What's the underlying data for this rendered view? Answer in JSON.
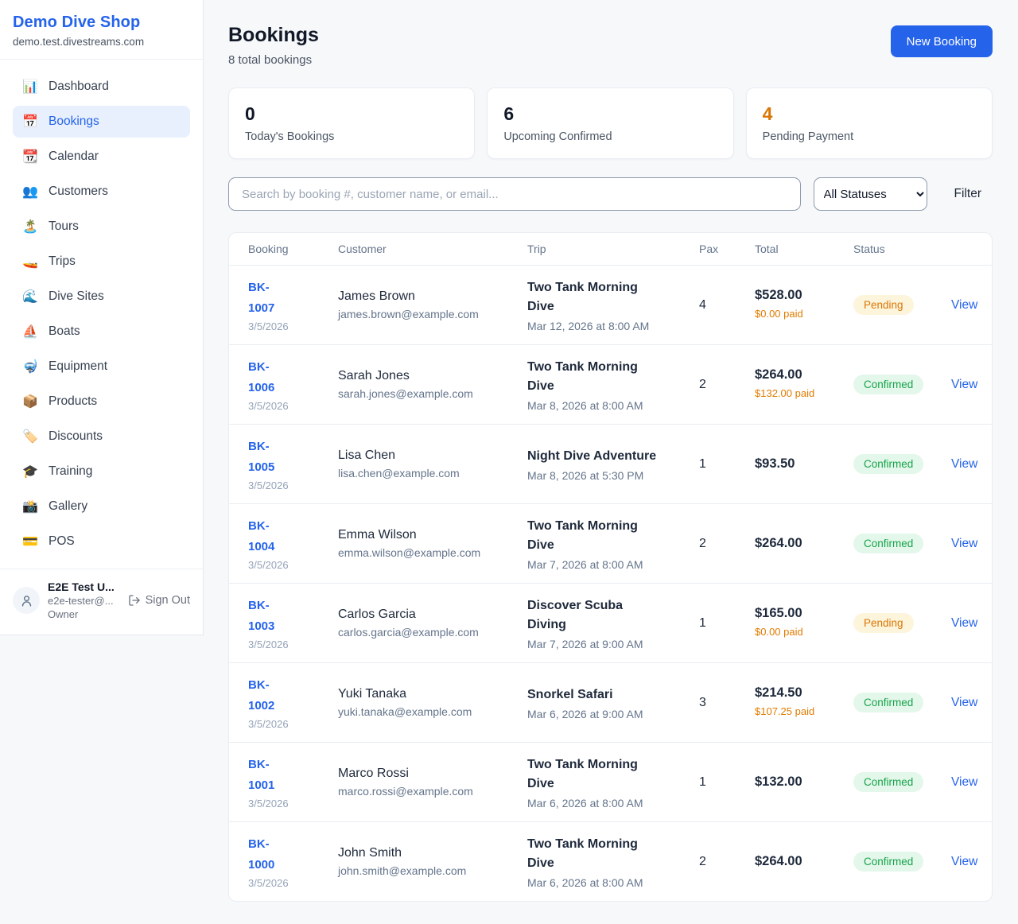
{
  "sidebar": {
    "shop_name": "Demo Dive Shop",
    "domain": "demo.test.divestreams.com",
    "items": [
      {
        "label": "Dashboard",
        "icon": "bar-chart-icon",
        "glyph": "📊",
        "active": false
      },
      {
        "label": "Bookings",
        "icon": "calendar-date-icon",
        "glyph": "📅",
        "active": true
      },
      {
        "label": "Calendar",
        "icon": "tear-off-calendar-icon",
        "glyph": "📆",
        "active": false
      },
      {
        "label": "Customers",
        "icon": "people-icon",
        "glyph": "👥",
        "active": false
      },
      {
        "label": "Tours",
        "icon": "island-icon",
        "glyph": "🏝️",
        "active": false
      },
      {
        "label": "Trips",
        "icon": "speedboat-icon",
        "glyph": "🚤",
        "active": false
      },
      {
        "label": "Dive Sites",
        "icon": "wave-icon",
        "glyph": "🌊",
        "active": false
      },
      {
        "label": "Boats",
        "icon": "sailboat-icon",
        "glyph": "⛵",
        "active": false
      },
      {
        "label": "Equipment",
        "icon": "diving-mask-icon",
        "glyph": "🤿",
        "active": false
      },
      {
        "label": "Products",
        "icon": "package-icon",
        "glyph": "📦",
        "active": false
      },
      {
        "label": "Discounts",
        "icon": "label-tag-icon",
        "glyph": "🏷️",
        "active": false
      },
      {
        "label": "Training",
        "icon": "graduation-cap-icon",
        "glyph": "🎓",
        "active": false
      },
      {
        "label": "Gallery",
        "icon": "camera-flash-icon",
        "glyph": "📸",
        "active": false
      },
      {
        "label": "POS",
        "icon": "credit-card-icon",
        "glyph": "💳",
        "active": false
      }
    ],
    "user": {
      "name": "E2E Test U...",
      "email": "e2e-tester@...",
      "role": "Owner",
      "sign_out_label": "Sign Out"
    }
  },
  "header": {
    "title": "Bookings",
    "subtitle": "8 total bookings",
    "new_booking_label": "New Booking"
  },
  "stats": [
    {
      "value": "0",
      "label": "Today's Bookings"
    },
    {
      "value": "6",
      "label": "Upcoming Confirmed"
    },
    {
      "value": "4",
      "label": "Pending Payment"
    }
  ],
  "filters": {
    "search_placeholder": "Search by booking #, customer name, or email...",
    "status_selected": "All Statuses",
    "filter_label": "Filter"
  },
  "table": {
    "columns": [
      "Booking",
      "Customer",
      "Trip",
      "Pax",
      "Total",
      "Status"
    ],
    "view_label": "View",
    "rows": [
      {
        "id": "BK-1007",
        "date": "3/5/2026",
        "customer": "James Brown",
        "email": "james.brown@example.com",
        "trip": "Two Tank Morning Dive",
        "trip_time": "Mar 12, 2026 at 8:00 AM",
        "pax": "4",
        "total": "$528.00",
        "paid": "$0.00 paid",
        "status": "Pending"
      },
      {
        "id": "BK-1006",
        "date": "3/5/2026",
        "customer": "Sarah Jones",
        "email": "sarah.jones@example.com",
        "trip": "Two Tank Morning Dive",
        "trip_time": "Mar 8, 2026 at 8:00 AM",
        "pax": "2",
        "total": "$264.00",
        "paid": "$132.00 paid",
        "status": "Confirmed"
      },
      {
        "id": "BK-1005",
        "date": "3/5/2026",
        "customer": "Lisa Chen",
        "email": "lisa.chen@example.com",
        "trip": "Night Dive Adventure",
        "trip_time": "Mar 8, 2026 at 5:30 PM",
        "pax": "1",
        "total": "$93.50",
        "paid": "",
        "status": "Confirmed"
      },
      {
        "id": "BK-1004",
        "date": "3/5/2026",
        "customer": "Emma Wilson",
        "email": "emma.wilson@example.com",
        "trip": "Two Tank Morning Dive",
        "trip_time": "Mar 7, 2026 at 8:00 AM",
        "pax": "2",
        "total": "$264.00",
        "paid": "",
        "status": "Confirmed"
      },
      {
        "id": "BK-1003",
        "date": "3/5/2026",
        "customer": "Carlos Garcia",
        "email": "carlos.garcia@example.com",
        "trip": "Discover Scuba Diving",
        "trip_time": "Mar 7, 2026 at 9:00 AM",
        "pax": "1",
        "total": "$165.00",
        "paid": "$0.00 paid",
        "status": "Pending"
      },
      {
        "id": "BK-1002",
        "date": "3/5/2026",
        "customer": "Yuki Tanaka",
        "email": "yuki.tanaka@example.com",
        "trip": "Snorkel Safari",
        "trip_time": "Mar 6, 2026 at 9:00 AM",
        "pax": "3",
        "total": "$214.50",
        "paid": "$107.25 paid",
        "status": "Confirmed"
      },
      {
        "id": "BK-1001",
        "date": "3/5/2026",
        "customer": "Marco Rossi",
        "email": "marco.rossi@example.com",
        "trip": "Two Tank Morning Dive",
        "trip_time": "Mar 6, 2026 at 8:00 AM",
        "pax": "1",
        "total": "$132.00",
        "paid": "",
        "status": "Confirmed"
      },
      {
        "id": "BK-1000",
        "date": "3/5/2026",
        "customer": "John Smith",
        "email": "john.smith@example.com",
        "trip": "Two Tank Morning Dive",
        "trip_time": "Mar 6, 2026 at 8:00 AM",
        "pax": "2",
        "total": "$264.00",
        "paid": "",
        "status": "Confirmed"
      }
    ]
  },
  "colors": {
    "accent_blue": "#2563eb",
    "pending_orange": "#d97706",
    "confirmed_green": "#16a34a",
    "pending_badge_bg": "#fdf4dc",
    "confirmed_badge_bg": "#e4f7eb",
    "page_bg": "#f6f8fa"
  }
}
